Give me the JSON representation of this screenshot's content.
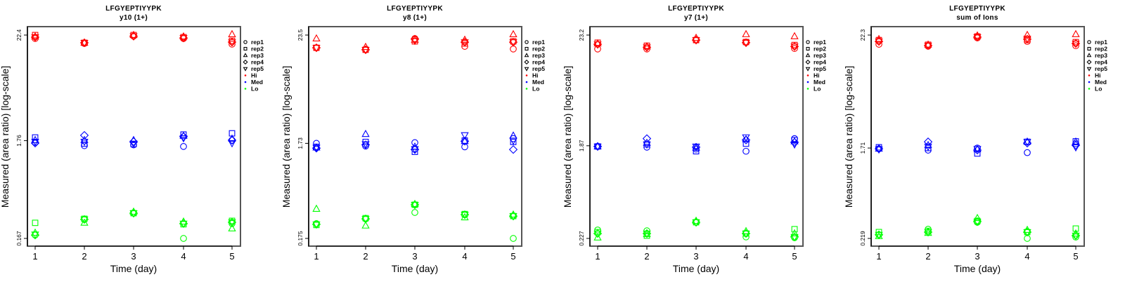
{
  "chart_data": [
    {
      "type": "scatter",
      "title": "LFGYEPTIYYPK",
      "subtitle": "y10 (1+)",
      "xlabel": "Time (day)",
      "ylabel": "Measured (area ratio) [log-scale]",
      "y_scale": "log",
      "x": [
        1,
        2,
        3,
        4,
        5
      ],
      "yticks": [
        22.4,
        1.76,
        0.167
      ],
      "ytick_labels": [
        "22.4",
        "1.76",
        "0.167"
      ],
      "series": {
        "Hi": [
          [
            20.6,
            22.4,
            21.6,
            21.3,
            21.3
          ],
          [
            18.3,
            18.6,
            18.6,
            18.6,
            18.6
          ],
          [
            21.8,
            22.4,
            22.4,
            21.8,
            21.8
          ],
          [
            20.6,
            21.3,
            21.6,
            20.9,
            20.9
          ],
          [
            18.0,
            19.5,
            22.8,
            18.9,
            18.9
          ]
        ],
        "Med": [
          [
            1.69,
            1.9,
            1.78,
            1.66,
            1.72
          ],
          [
            1.56,
            1.64,
            1.78,
            2.0,
            1.72
          ],
          [
            1.59,
            1.62,
            1.78,
            1.72,
            1.64
          ],
          [
            1.53,
            2.04,
            1.97,
            1.94,
            1.87
          ],
          [
            1.78,
            2.1,
            1.84,
            1.78,
            1.66
          ]
        ],
        "Lo": [
          [
            0.181,
            0.243,
            0.191,
            0.181,
            0.184
          ],
          [
            0.264,
            0.268,
            0.243,
            0.264,
            0.264
          ],
          [
            0.307,
            0.307,
            0.317,
            0.307,
            0.307
          ],
          [
            0.167,
            0.235,
            0.25,
            0.239,
            0.239
          ],
          [
            0.239,
            0.255,
            0.212,
            0.247,
            0.247
          ]
        ]
      }
    },
    {
      "type": "scatter",
      "title": "LFGYEPTIYYPK",
      "subtitle": "y8 (1+)",
      "xlabel": "Time (day)",
      "ylabel": "Measured (area ratio) [log-scale]",
      "y_scale": "log",
      "x": [
        1,
        2,
        3,
        4,
        5
      ],
      "yticks": [
        23.5,
        1.73,
        0.175
      ],
      "ytick_labels": [
        "23.5",
        "1.73",
        "0.175"
      ],
      "series": {
        "Hi": [
          [
            17.3,
            17.3,
            21.6,
            17.3,
            17.3
          ],
          [
            16.5,
            16.5,
            17.6,
            16.5,
            16.5
          ],
          [
            21.6,
            20.2,
            20.9,
            21.3,
            20.5
          ],
          [
            17.9,
            19.2,
            20.9,
            19.8,
            19.8
          ],
          [
            16.8,
            20.2,
            23.9,
            19.8,
            19.8
          ]
        ],
        "Med": [
          [
            1.73,
            1.59,
            1.56,
            1.54,
            1.56
          ],
          [
            1.62,
            1.79,
            2.16,
            1.67,
            1.7
          ],
          [
            1.76,
            1.41,
            1.59,
            1.49,
            1.51
          ],
          [
            1.59,
            1.85,
            1.82,
            1.82,
            2.11
          ],
          [
            1.94,
            1.79,
            2.08,
            1.49,
            1.85
          ]
        ],
        "Lo": [
          [
            0.25,
            0.242,
            0.356,
            0.246,
            0.246
          ],
          [
            0.28,
            0.285,
            0.238,
            0.28,
            0.28
          ],
          [
            0.327,
            0.394,
            0.4,
            0.394,
            0.394
          ],
          [
            0.31,
            0.315,
            0.29,
            0.31,
            0.31
          ],
          [
            0.175,
            0.3,
            0.31,
            0.3,
            0.3
          ]
        ]
      }
    },
    {
      "type": "scatter",
      "title": "LFGYEPTIYYPK",
      "subtitle": "y7 (1+)",
      "xlabel": "Time (day)",
      "ylabel": "Measured (area ratio) [log-scale]",
      "y_scale": "log",
      "x": [
        1,
        2,
        3,
        4,
        5
      ],
      "yticks": [
        23.2,
        1.87,
        0.227
      ],
      "ytick_labels": [
        "23.2",
        "1.87",
        "0.227"
      ],
      "series": {
        "Hi": [
          [
            16.9,
            19.5,
            19.1,
            18.8,
            18.8
          ],
          [
            16.9,
            18.2,
            17.9,
            17.6,
            17.6
          ],
          [
            20.7,
            20.7,
            21.7,
            20.7,
            20.7
          ],
          [
            19.8,
            19.8,
            23.6,
            19.5,
            19.5
          ],
          [
            17.1,
            18.5,
            22.5,
            17.9,
            17.9
          ]
        ],
        "Med": [
          [
            1.84,
            1.84,
            1.84,
            1.84,
            1.84
          ],
          [
            1.81,
            1.93,
            1.99,
            2.2,
            1.93
          ],
          [
            1.73,
            1.65,
            1.78,
            1.81,
            1.84
          ],
          [
            1.65,
            1.96,
            2.16,
            2.13,
            2.27
          ],
          [
            2.2,
            2.13,
            2.06,
            2.02,
            1.93
          ]
        ],
        "Lo": [
          [
            0.275,
            0.262,
            0.231,
            0.254,
            0.254
          ],
          [
            0.27,
            0.242,
            0.25,
            0.254,
            0.254
          ],
          [
            0.328,
            0.328,
            0.338,
            0.328,
            0.328
          ],
          [
            0.235,
            0.254,
            0.267,
            0.254,
            0.254
          ],
          [
            0.231,
            0.28,
            0.254,
            0.235,
            0.235
          ]
        ]
      }
    },
    {
      "type": "scatter",
      "title": "LFGYEPTIYYPK",
      "subtitle": "sum of Ions",
      "xlabel": "Time (day)",
      "ylabel": "Measured (area ratio) [log-scale]",
      "y_scale": "log",
      "x": [
        1,
        2,
        3,
        4,
        5
      ],
      "yticks": [
        22.3,
        1.71,
        0.219
      ],
      "ytick_labels": [
        "22.3",
        "1.71",
        "0.219"
      ],
      "series": {
        "Hi": [
          [
            18.1,
            19.9,
            20.3,
            19.3,
            19.3
          ],
          [
            17.3,
            17.9,
            17.9,
            17.6,
            17.6
          ],
          [
            20.9,
            21.6,
            22.0,
            21.3,
            21.3
          ],
          [
            19.3,
            19.9,
            22.3,
            20.3,
            20.6
          ],
          [
            17.5,
            19.0,
            22.7,
            18.4,
            18.4
          ]
        ],
        "Med": [
          [
            1.68,
            1.74,
            1.68,
            1.68,
            1.66
          ],
          [
            1.63,
            1.71,
            1.82,
            1.97,
            1.77
          ],
          [
            1.71,
            1.51,
            1.66,
            1.63,
            1.68
          ],
          [
            1.54,
            1.97,
            1.97,
            1.91,
            1.97
          ],
          [
            1.88,
            1.99,
            1.97,
            1.82,
            1.74
          ]
        ],
        "Lo": [
          [
            0.238,
            0.253,
            0.23,
            0.238,
            0.238
          ],
          [
            0.27,
            0.26,
            0.248,
            0.253,
            0.253
          ],
          [
            0.316,
            0.326,
            0.347,
            0.321,
            0.321
          ],
          [
            0.219,
            0.253,
            0.265,
            0.253,
            0.253
          ],
          [
            0.226,
            0.274,
            0.244,
            0.234,
            0.234
          ]
        ]
      }
    }
  ],
  "legend": {
    "placement": "right",
    "reps": [
      "rep1",
      "rep2",
      "rep3",
      "rep4",
      "rep5"
    ],
    "rep_symbols": [
      "circle",
      "square",
      "triangle-up",
      "diamond",
      "triangle-down"
    ],
    "levels": [
      "Hi",
      "Med",
      "Lo"
    ],
    "level_colors": {
      "Hi": "#FF0000",
      "Med": "#0000FF",
      "Lo": "#00FF00"
    }
  }
}
